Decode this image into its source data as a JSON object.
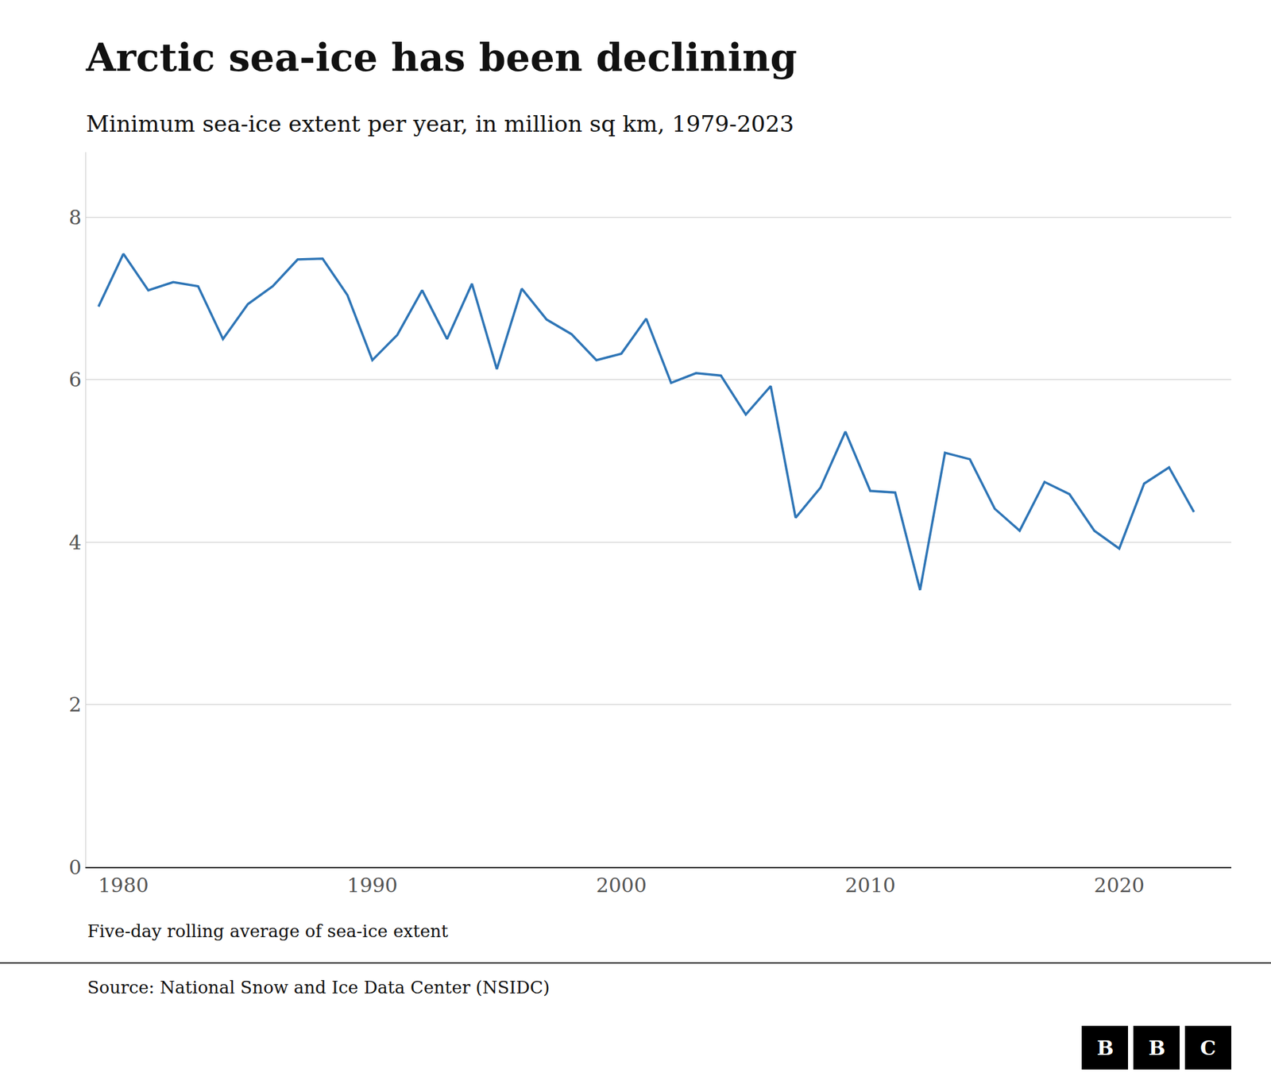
{
  "chart_data": {
    "type": "line",
    "title": "Arctic sea-ice has been declining",
    "subtitle": "Minimum sea-ice extent per year, in million sq km, 1979-2023",
    "annotations": [
      "Five-day rolling average of sea-ice extent",
      "Source: National Snow and Ice Data Center (NSIDC)",
      "BBC"
    ],
    "x": [
      1979,
      1980,
      1981,
      1982,
      1983,
      1984,
      1985,
      1986,
      1987,
      1988,
      1989,
      1990,
      1991,
      1992,
      1993,
      1994,
      1995,
      1996,
      1997,
      1998,
      1999,
      2000,
      2001,
      2002,
      2003,
      2004,
      2005,
      2006,
      2007,
      2008,
      2009,
      2010,
      2011,
      2012,
      2013,
      2014,
      2015,
      2016,
      2017,
      2018,
      2019,
      2020,
      2021,
      2022,
      2023
    ],
    "values": [
      6.9,
      7.55,
      7.1,
      7.2,
      7.15,
      6.5,
      6.93,
      7.15,
      7.48,
      7.49,
      7.04,
      6.24,
      6.55,
      7.1,
      6.5,
      7.18,
      6.13,
      7.12,
      6.74,
      6.56,
      6.24,
      6.32,
      6.75,
      5.96,
      6.08,
      6.05,
      5.57,
      5.92,
      4.3,
      4.67,
      5.36,
      4.63,
      4.61,
      3.41,
      5.1,
      5.02,
      4.41,
      4.14,
      4.74,
      4.59,
      4.14,
      3.92,
      4.72,
      4.92,
      4.37
    ],
    "color": "#2e75b6",
    "xlim": [
      1978.5,
      2024.5
    ],
    "ylim": [
      0,
      8.8
    ],
    "xticks": [
      1980,
      1990,
      2000,
      2010,
      2020
    ],
    "yticks": [
      0,
      2,
      4,
      6,
      8
    ],
    "grid": true
  }
}
